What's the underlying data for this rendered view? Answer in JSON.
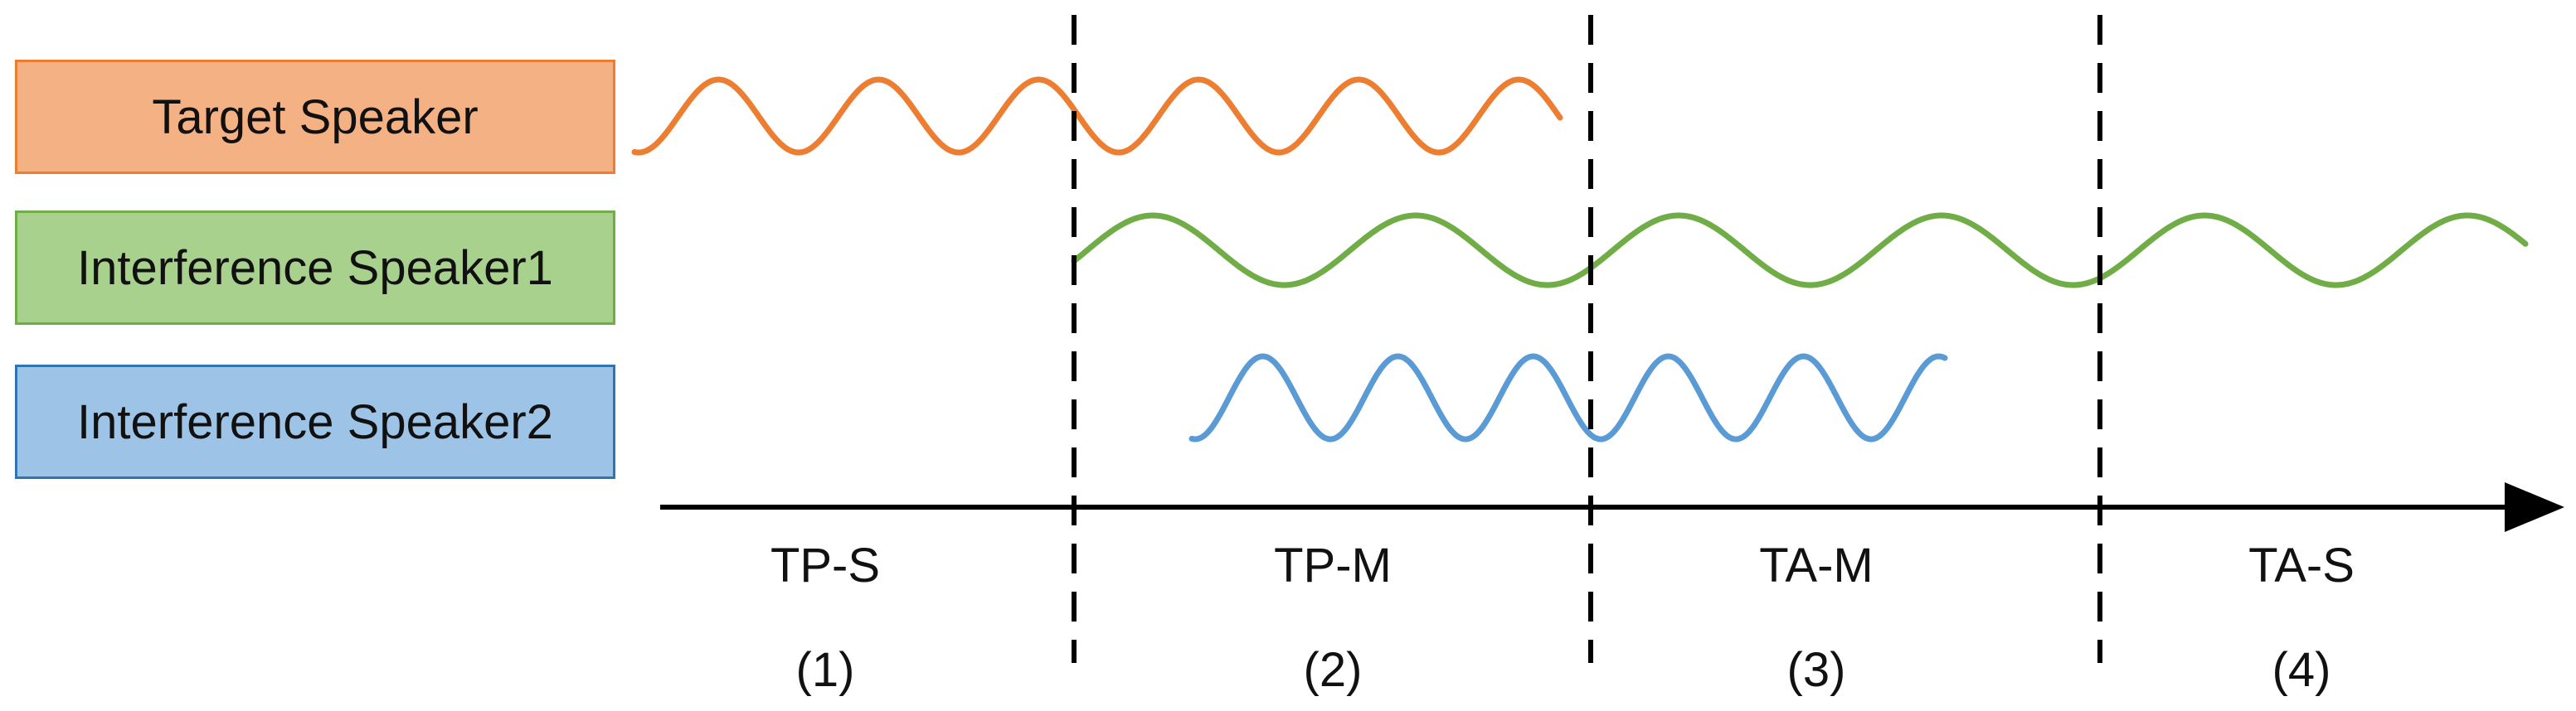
{
  "speakers": [
    {
      "label": "Target Speaker",
      "fill": "#F4B183",
      "border": "#ED7D31",
      "wave": "#ED7D31"
    },
    {
      "label": "Interference Speaker1",
      "fill": "#A9D18E",
      "border": "#70AD47",
      "wave": "#70AD47"
    },
    {
      "label": "Interference Speaker2",
      "fill": "#9DC3E6",
      "border": "#2E75B6",
      "wave": "#5B9BD5"
    }
  ],
  "segments": [
    {
      "label": "TP-S",
      "number": "(1)"
    },
    {
      "label": "TP-M",
      "number": "(2)"
    },
    {
      "label": "TA-M",
      "number": "(3)"
    },
    {
      "label": "TA-S",
      "number": "(4)"
    }
  ]
}
